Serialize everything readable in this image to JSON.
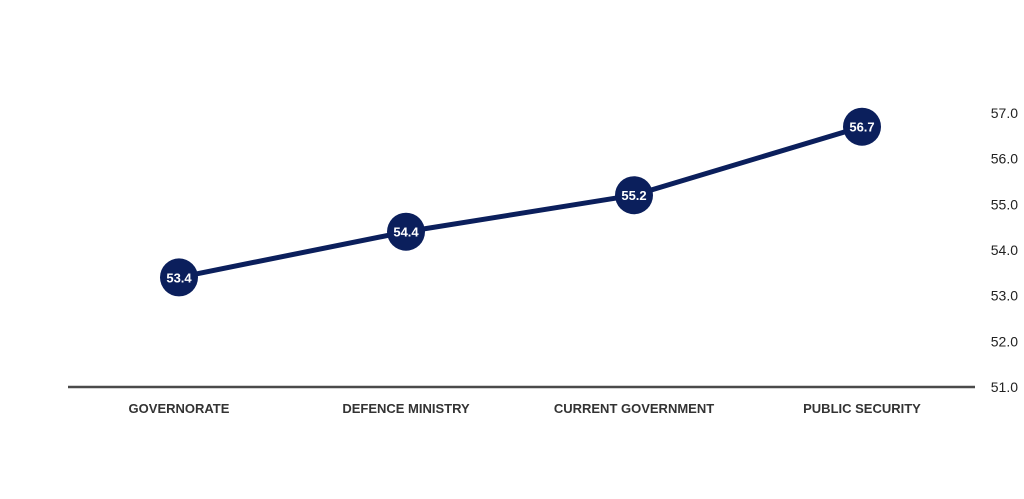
{
  "chart_data": {
    "type": "line",
    "categories": [
      "GOVERNORATE",
      "DEFENCE MINISTRY",
      "CURRENT GOVERNMENT",
      "PUBLIC SECURITY"
    ],
    "series": [
      {
        "values": [
          53.4,
          54.4,
          55.2,
          56.7
        ]
      }
    ],
    "data_labels": [
      "53.4",
      "54.4",
      "55.2",
      "56.7"
    ],
    "y_ticks": [
      "51.0",
      "52.0",
      "53.0",
      "54.0",
      "55.0",
      "56.0",
      "57.0"
    ],
    "ylim": [
      51,
      57
    ],
    "y_axis_side": "right",
    "grid": false,
    "legend": "none",
    "colors": {
      "line": "#0b1f5c",
      "marker": "#0b1f5c",
      "axis": "#4a4a4a",
      "label_text": "#ffffff"
    }
  }
}
